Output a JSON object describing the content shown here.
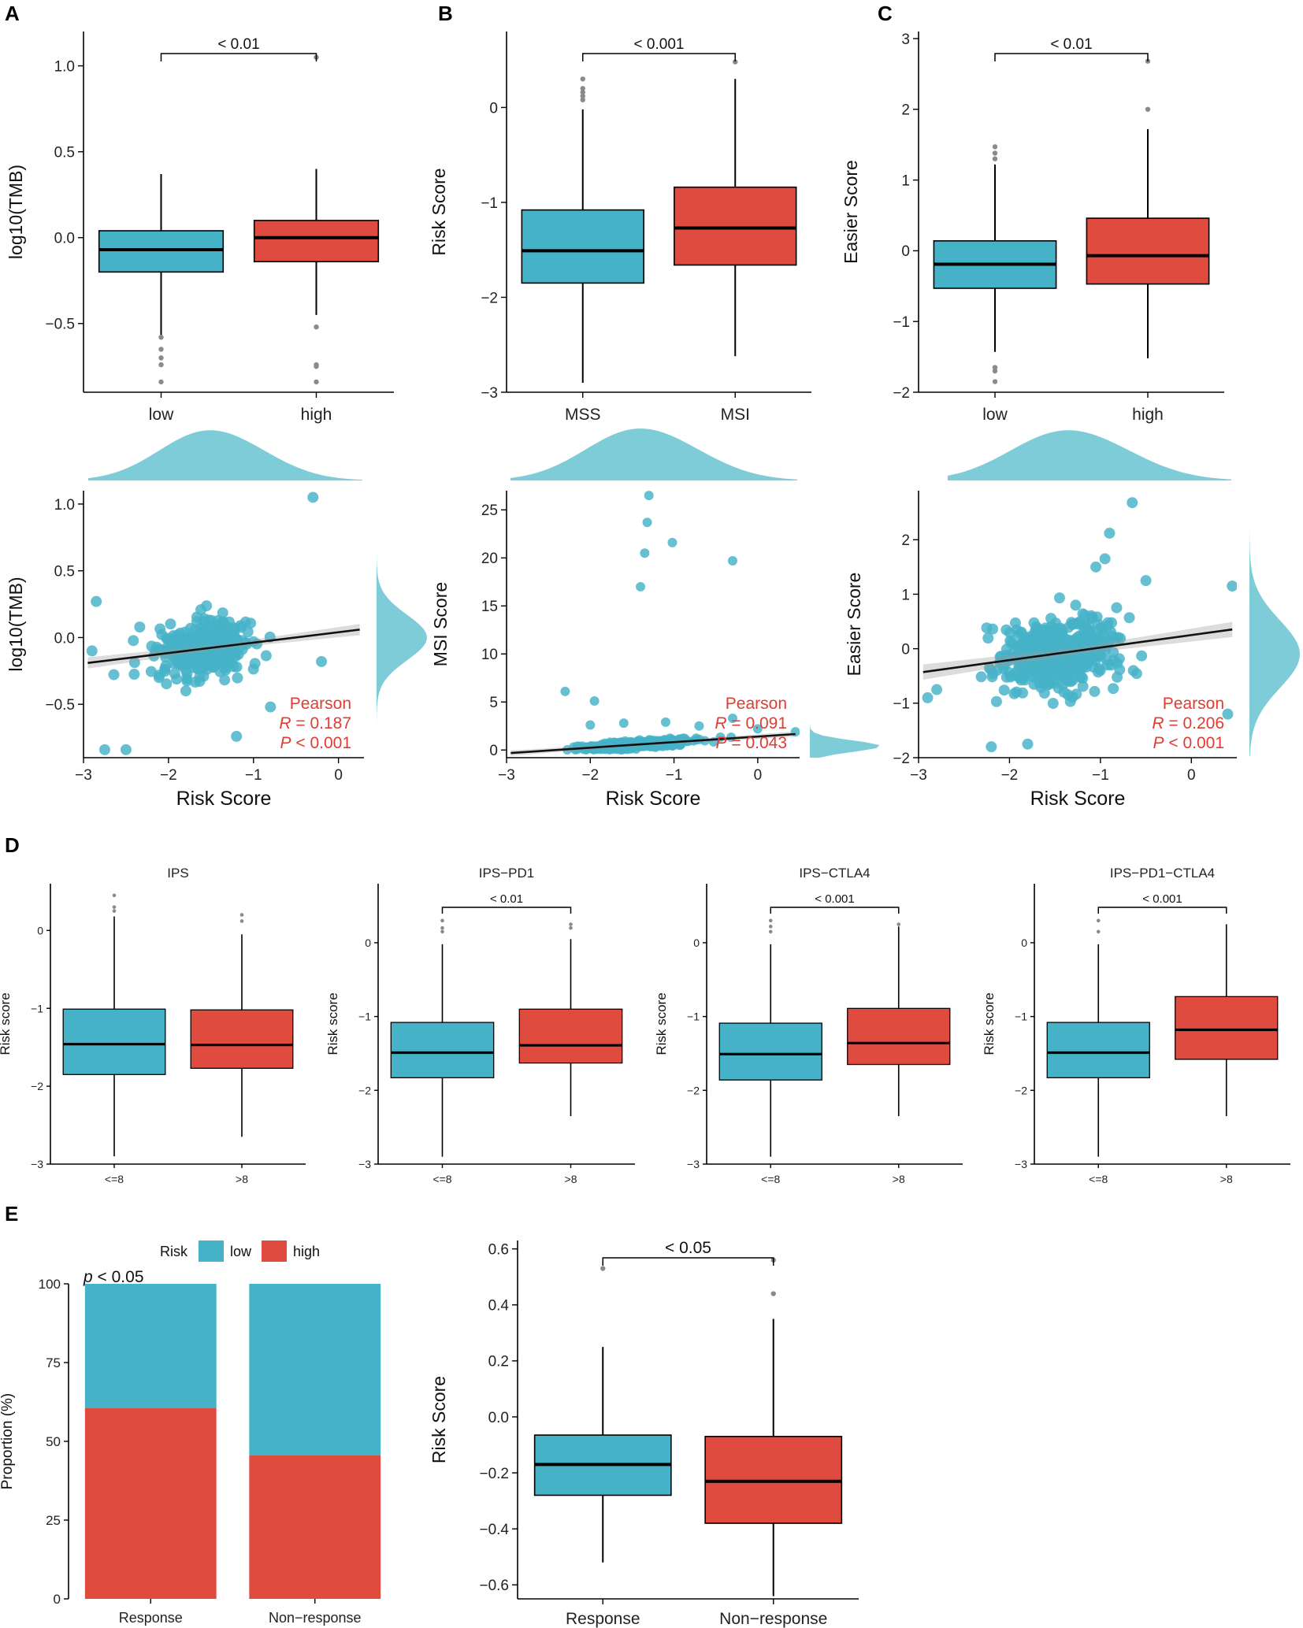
{
  "colors": {
    "low": "#45B2C8",
    "high": "#E04B3F",
    "teal": "#45B2C8",
    "density": "#7FCCD9",
    "pearson": "#E03C30",
    "point": "#8A8A8A"
  },
  "panel_labels": {
    "A": "A",
    "B": "B",
    "C": "C",
    "D": "D",
    "E": "E"
  },
  "chart_data": [
    {
      "id": "A1",
      "type": "box",
      "ylabel": "log10(TMB)",
      "ylim": [
        -0.9,
        1.2
      ],
      "yticks": [
        -0.5,
        0.0,
        0.5,
        1.0
      ],
      "ytick_labels": [
        "−0.5",
        "0.0",
        "0.5",
        "1.0"
      ],
      "categories": [
        "low",
        "high"
      ],
      "sig": "< 0.01",
      "boxes": [
        {
          "name": "low",
          "min": -0.57,
          "q1": -0.2,
          "median": -0.07,
          "q3": 0.04,
          "max": 0.37,
          "outliers": [
            -0.58,
            -0.65,
            -0.7,
            -0.74,
            -0.84
          ]
        },
        {
          "name": "high",
          "min": -0.45,
          "q1": -0.14,
          "median": 0.0,
          "q3": 0.1,
          "max": 0.4,
          "outliers": [
            -0.52,
            -0.74,
            -0.75,
            -0.84,
            1.05
          ]
        }
      ]
    },
    {
      "id": "B1",
      "type": "box",
      "ylabel": "Risk Score",
      "ylim": [
        -3.0,
        0.8
      ],
      "yticks": [
        -3,
        -2,
        -1,
        0
      ],
      "ytick_labels": [
        "−3",
        "−2",
        "−1",
        "0"
      ],
      "categories": [
        "MSS",
        "MSI"
      ],
      "sig": "< 0.001",
      "boxes": [
        {
          "name": "MSS",
          "min": -2.9,
          "q1": -1.85,
          "median": -1.51,
          "q3": -1.08,
          "max": -0.02,
          "outliers": [
            0.08,
            0.12,
            0.16,
            0.2,
            0.3
          ]
        },
        {
          "name": "MSI",
          "min": -2.62,
          "q1": -1.66,
          "median": -1.27,
          "q3": -0.84,
          "max": 0.3,
          "outliers": [
            0.48
          ]
        }
      ]
    },
    {
      "id": "C1",
      "type": "box",
      "ylabel": "Easier Score",
      "ylim": [
        -2.0,
        3.1
      ],
      "yticks": [
        -2,
        -1,
        0,
        1,
        2,
        3
      ],
      "ytick_labels": [
        "−2",
        "−1",
        "0",
        "1",
        "2",
        "3"
      ],
      "categories": [
        "low",
        "high"
      ],
      "sig": "< 0.01",
      "boxes": [
        {
          "name": "low",
          "min": -1.43,
          "q1": -0.53,
          "median": -0.19,
          "q3": 0.14,
          "max": 1.22,
          "outliers": [
            -1.65,
            -1.7,
            -1.85,
            1.3,
            1.38,
            1.47
          ]
        },
        {
          "name": "high",
          "min": -1.52,
          "q1": -0.47,
          "median": -0.07,
          "q3": 0.46,
          "max": 1.72,
          "outliers": [
            2.0,
            2.68
          ]
        }
      ]
    },
    {
      "id": "A2",
      "type": "scatter",
      "xlabel": "Risk Score",
      "ylabel": "log10(TMB)",
      "xlim": [
        -3.0,
        0.3
      ],
      "ylim": [
        -0.9,
        1.1
      ],
      "xticks": [
        -3,
        -2,
        -1,
        0
      ],
      "xtick_labels": [
        "−3",
        "−2",
        "−1",
        "0"
      ],
      "yticks": [
        -0.5,
        0.0,
        0.5,
        1.0
      ],
      "ytick_labels": [
        "−0.5",
        "0.0",
        "0.5",
        "1.0"
      ],
      "fit": {
        "intercept": 0.04,
        "slope": 0.078,
        "band": 0.03
      },
      "pearson": {
        "title": "Pearson",
        "r_label": "R",
        "r_value": "= 0.187",
        "p_label": "P",
        "p_value": "< 0.001"
      },
      "cloud": {
        "n": 290,
        "xmean": -1.6,
        "xsd": 0.55,
        "noise": 0.2,
        "seed": 11
      },
      "outliers": [
        [
          -0.3,
          1.05
        ],
        [
          -2.75,
          -0.84
        ],
        [
          -2.5,
          -0.84
        ],
        [
          -1.2,
          -0.74
        ],
        [
          -0.8,
          -0.52
        ],
        [
          -0.2,
          -0.18
        ],
        [
          -2.9,
          -0.1
        ],
        [
          -2.85,
          0.27
        ]
      ]
    },
    {
      "id": "B2",
      "type": "scatter",
      "xlabel": "Risk Score",
      "ylabel": "MSI Score",
      "xlim": [
        -3.0,
        0.5
      ],
      "ylim": [
        -0.8,
        27
      ],
      "xticks": [
        -3,
        -2,
        -1,
        0
      ],
      "xtick_labels": [
        "−3",
        "−2",
        "−1",
        "0"
      ],
      "yticks": [
        0,
        5,
        10,
        15,
        20,
        25
      ],
      "ytick_labels": [
        "0",
        "5",
        "10",
        "15",
        "20",
        "25"
      ],
      "fit": {
        "intercept": 1.4,
        "slope": 0.58,
        "band": 0.2
      },
      "pearson": {
        "title": "Pearson",
        "r_label": "R",
        "r_value": "= 0.091",
        "p_label": "P",
        "p_value": "= 0.043"
      },
      "cloud": {
        "n": 460,
        "xmean": -1.5,
        "xsd": 0.6,
        "noise": 0.35,
        "seed": 22,
        "clamp_low": 0
      },
      "outliers": [
        [
          -1.3,
          26.5
        ],
        [
          -1.32,
          23.7
        ],
        [
          -1.02,
          21.6
        ],
        [
          -1.35,
          20.5
        ],
        [
          -0.3,
          19.7
        ],
        [
          -1.4,
          17.0
        ],
        [
          -2.3,
          6.1
        ],
        [
          -1.95,
          5.1
        ],
        [
          -0.3,
          3.3
        ],
        [
          0.0,
          2.2
        ],
        [
          0.45,
          1.9
        ],
        [
          -2.0,
          2.6
        ],
        [
          -1.6,
          2.8
        ],
        [
          -1.1,
          2.9
        ],
        [
          -0.7,
          2.5
        ]
      ]
    },
    {
      "id": "C2",
      "type": "scatter",
      "xlabel": "Risk Score",
      "ylabel": "Easier Score",
      "xlim": [
        -3.0,
        0.5
      ],
      "ylim": [
        -2.0,
        2.9
      ],
      "xticks": [
        -3,
        -2,
        -1,
        0
      ],
      "xtick_labels": [
        "−3",
        "−2",
        "−1",
        "0"
      ],
      "yticks": [
        -2,
        -1,
        0,
        1,
        2
      ],
      "ytick_labels": [
        "−2",
        "−1",
        "0",
        "1",
        "2"
      ],
      "fit": {
        "intercept": 0.25,
        "slope": 0.23,
        "band": 0.1
      },
      "pearson": {
        "title": "Pearson",
        "r_label": "R",
        "r_value": "= 0.206",
        "p_label": "P",
        "p_value": "< 0.001"
      },
      "cloud": {
        "n": 470,
        "xmean": -1.45,
        "xsd": 0.58,
        "noise": 0.6,
        "seed": 33
      },
      "outliers": [
        [
          -0.65,
          2.68
        ],
        [
          -0.9,
          2.12
        ],
        [
          -0.95,
          1.65
        ],
        [
          -1.05,
          1.5
        ],
        [
          -2.2,
          -1.8
        ],
        [
          -1.8,
          -1.75
        ],
        [
          -2.9,
          -0.9
        ],
        [
          -2.8,
          -0.75
        ],
        [
          0.4,
          -1.2
        ],
        [
          0.45,
          1.15
        ],
        [
          -0.5,
          1.25
        ]
      ]
    },
    {
      "id": "D1",
      "type": "box",
      "title": "IPS",
      "ylabel": "Risk score",
      "ylim": [
        -3.0,
        0.6
      ],
      "yticks": [
        -3,
        -2,
        -1,
        0
      ],
      "ytick_labels": [
        "−3",
        "−2",
        "−1",
        "0"
      ],
      "categories": [
        "<=8",
        ">8"
      ],
      "sig": null,
      "boxes": [
        {
          "name": "<=8",
          "min": -2.9,
          "q1": -1.85,
          "median": -1.46,
          "q3": -1.01,
          "max": 0.18,
          "outliers": [
            0.25,
            0.3,
            0.45
          ]
        },
        {
          "name": ">8",
          "min": -2.65,
          "q1": -1.77,
          "median": -1.47,
          "q3": -1.02,
          "max": -0.05,
          "outliers": [
            0.12,
            0.2
          ]
        }
      ]
    },
    {
      "id": "D2",
      "type": "box",
      "title": "IPS−PD1",
      "ylabel": "Risk score",
      "ylim": [
        -3.0,
        0.8
      ],
      "yticks": [
        -3,
        -2,
        -1,
        0
      ],
      "ytick_labels": [
        "−3",
        "−2",
        "−1",
        "0"
      ],
      "categories": [
        "<=8",
        ">8"
      ],
      "sig": "< 0.01",
      "boxes": [
        {
          "name": "<=8",
          "min": -2.9,
          "q1": -1.83,
          "median": -1.49,
          "q3": -1.08,
          "max": -0.02,
          "outliers": [
            0.15,
            0.2,
            0.3
          ]
        },
        {
          "name": ">8",
          "min": -2.35,
          "q1": -1.63,
          "median": -1.39,
          "q3": -0.9,
          "max": 0.05,
          "outliers": [
            0.2,
            0.25
          ]
        }
      ]
    },
    {
      "id": "D3",
      "type": "box",
      "title": "IPS−CTLA4",
      "ylabel": "Risk score",
      "ylim": [
        -3.0,
        0.8
      ],
      "yticks": [
        -3,
        -2,
        -1,
        0
      ],
      "ytick_labels": [
        "−3",
        "−2",
        "−1",
        "0"
      ],
      "categories": [
        "<=8",
        ">8"
      ],
      "sig": "< 0.001",
      "boxes": [
        {
          "name": "<=8",
          "min": -2.9,
          "q1": -1.86,
          "median": -1.51,
          "q3": -1.09,
          "max": -0.02,
          "outliers": [
            0.15,
            0.22,
            0.3
          ]
        },
        {
          "name": ">8",
          "min": -2.35,
          "q1": -1.65,
          "median": -1.36,
          "q3": -0.89,
          "max": 0.22,
          "outliers": [
            0.25
          ]
        }
      ]
    },
    {
      "id": "D4",
      "type": "box",
      "title": "IPS−PD1−CTLA4",
      "ylabel": "Risk score",
      "ylim": [
        -3.0,
        0.8
      ],
      "yticks": [
        -3,
        -2,
        -1,
        0
      ],
      "ytick_labels": [
        "−3",
        "−2",
        "−1",
        "0"
      ],
      "categories": [
        "<=8",
        ">8"
      ],
      "sig": "< 0.001",
      "boxes": [
        {
          "name": "<=8",
          "min": -2.9,
          "q1": -1.83,
          "median": -1.49,
          "q3": -1.08,
          "max": -0.02,
          "outliers": [
            0.15,
            0.3
          ]
        },
        {
          "name": ">8",
          "min": -2.35,
          "q1": -1.58,
          "median": -1.18,
          "q3": -0.73,
          "max": 0.25,
          "outliers": []
        }
      ]
    },
    {
      "id": "E1",
      "type": "bar",
      "stacked": true,
      "ylabel": "Proportion (%)",
      "ylim": [
        0,
        100
      ],
      "yticks": [
        0,
        25,
        50,
        75,
        100
      ],
      "ytick_labels": [
        "0",
        "25",
        "50",
        "75",
        "100"
      ],
      "categories": [
        "Response",
        "Non−response"
      ],
      "series": [
        {
          "name": "high",
          "values": [
            60.5,
            45.5
          ]
        },
        {
          "name": "low",
          "values": [
            39.5,
            54.5
          ]
        }
      ],
      "legend": {
        "title": "Risk",
        "labels": [
          "low",
          "high"
        ],
        "position": "top"
      },
      "annotation": {
        "p": "p",
        "text": "< 0.05"
      }
    },
    {
      "id": "E2",
      "type": "box",
      "ylabel": "Risk Score",
      "ylim": [
        -0.65,
        0.63
      ],
      "yticks": [
        -0.6,
        -0.4,
        -0.2,
        0.0,
        0.2,
        0.4,
        0.6
      ],
      "ytick_labels": [
        "−0.6",
        "−0.4",
        "−0.2",
        "0.0",
        "0.2",
        "0.4",
        "0.6"
      ],
      "categories": [
        "Response",
        "Non−response"
      ],
      "sig": "< 0.05",
      "boxes": [
        {
          "name": "Response",
          "min": -0.52,
          "q1": -0.28,
          "median": -0.17,
          "q3": -0.065,
          "max": 0.25,
          "outliers": [
            0.53
          ]
        },
        {
          "name": "Non−response",
          "min": -0.64,
          "q1": -0.38,
          "median": -0.23,
          "q3": -0.07,
          "max": 0.35,
          "outliers": [
            0.44,
            0.56
          ]
        }
      ]
    }
  ]
}
